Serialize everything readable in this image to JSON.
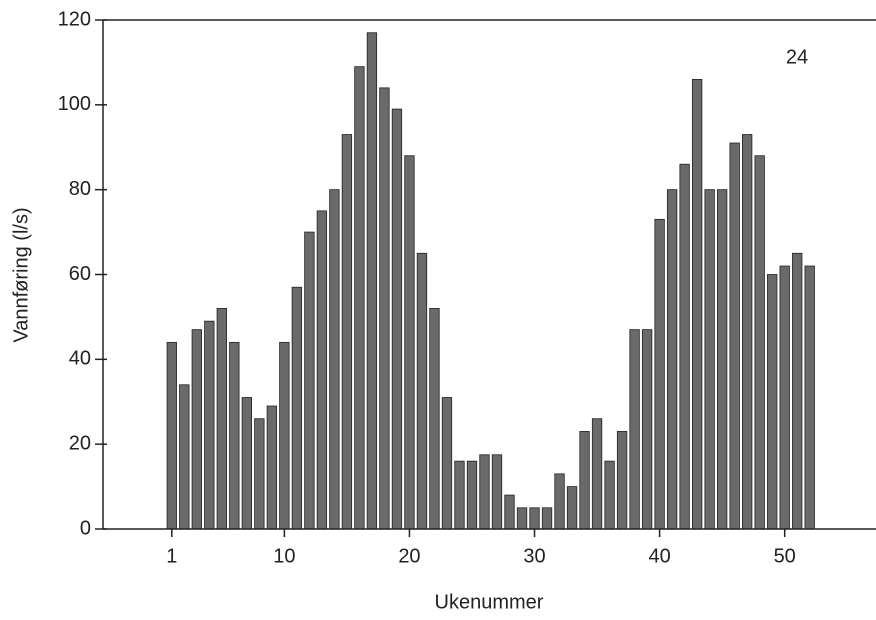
{
  "chart_data": {
    "type": "bar",
    "annotation": "24",
    "xlabel": "Ukenummer",
    "ylabel": "Vannføring (l/s)",
    "x": [
      1,
      2,
      3,
      4,
      5,
      6,
      7,
      8,
      9,
      10,
      11,
      12,
      13,
      14,
      15,
      16,
      17,
      18,
      19,
      20,
      21,
      22,
      23,
      24,
      25,
      26,
      27,
      28,
      29,
      30,
      31,
      32,
      33,
      34,
      35,
      36,
      37,
      38,
      39,
      40,
      41,
      42,
      43,
      44,
      45,
      46,
      47,
      48,
      49,
      50,
      51,
      52
    ],
    "values": [
      44,
      34,
      47,
      49,
      52,
      44,
      31,
      26,
      29,
      44,
      57,
      70,
      75,
      80,
      93,
      109,
      117,
      104,
      99,
      88,
      65,
      52,
      31,
      16,
      16,
      17.5,
      17.5,
      8,
      5,
      5,
      5,
      13,
      10,
      23,
      26,
      16,
      23,
      47,
      47,
      73,
      80,
      86,
      106,
      80,
      80,
      91,
      93,
      88,
      60,
      62,
      65,
      62
    ],
    "color": "#6a6a6a",
    "xlim": [
      -4.5,
      57.3
    ],
    "xticks": [
      1,
      10,
      20,
      30,
      40,
      50
    ],
    "ylim": [
      0,
      120
    ],
    "yticks": [
      0,
      20,
      40,
      60,
      80,
      100,
      120
    ]
  }
}
